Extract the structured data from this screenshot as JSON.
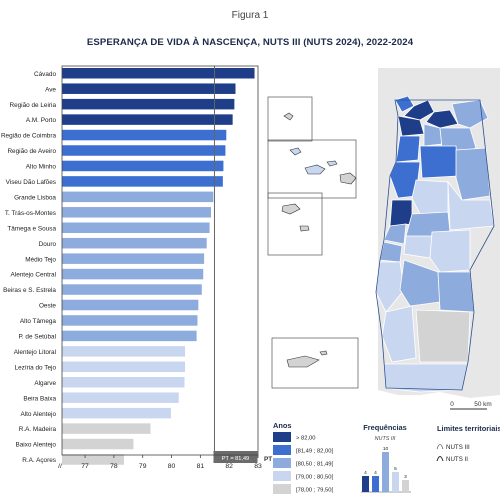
{
  "figure_label": "Figura 1",
  "title": "ESPERANÇA DE VIDA À NASCENÇA, NUTS III (NUTS 2024), 2022-2024",
  "chart_data": {
    "type": "bar",
    "orientation": "horizontal",
    "categories": [
      "Cávado",
      "Ave",
      "Região de Leiria",
      "A.M. Porto",
      "Região de Coimbra",
      "Região de Aveiro",
      "Alto Minho",
      "Viseu Dão Lafões",
      "Grande Lisboa",
      "T. Trás-os-Montes",
      "Tâmega e Sousa",
      "Douro",
      "Médio Tejo",
      "Alentejo Central",
      "Beiras e S. Estrela",
      "Oeste",
      "Alto Tâmega",
      "P. de Setúbal",
      "Alentejo Litoral",
      "Lezíria do Tejo",
      "Algarve",
      "Beira Baixa",
      "Alto Alentejo",
      "R.A. Madeira",
      "Baixo Alentejo",
      "R.A. Açores"
    ],
    "values": [
      82.88,
      82.22,
      82.18,
      82.12,
      81.9,
      81.87,
      81.8,
      81.78,
      81.45,
      81.37,
      81.32,
      81.22,
      81.13,
      81.1,
      81.05,
      80.93,
      80.9,
      80.87,
      80.47,
      80.47,
      80.45,
      80.25,
      79.98,
      79.27,
      78.68,
      78.35
    ],
    "classes": [
      0,
      0,
      0,
      0,
      1,
      1,
      1,
      1,
      2,
      2,
      2,
      2,
      2,
      2,
      2,
      2,
      2,
      2,
      3,
      3,
      3,
      3,
      3,
      4,
      4,
      4
    ],
    "xlim": [
      76.2,
      83
    ],
    "xticks": [
      "77",
      "78",
      "79",
      "80",
      "81",
      "82",
      "83"
    ],
    "axis_break_label": "//",
    "reference_line": {
      "value": 81.49,
      "label": "PT = 81,49",
      "axis_tag": "PT"
    },
    "legend": {
      "title": "Anos",
      "entries": [
        {
          "label": "> 82,00",
          "color": "#1f3e8a"
        },
        {
          "label": "[81,49 ; 82,00[",
          "color": "#3c6fd0"
        },
        {
          "label": "[80,50 ; 81,49[",
          "color": "#8eabde"
        },
        {
          "label": "[79,00 ; 80,50[",
          "color": "#c9d6f0"
        },
        {
          "label": "[78,00 ; 79,50[",
          "color": "#d3d3d3"
        }
      ]
    },
    "frequencies": {
      "title": "Frequências",
      "subtitle": "NUTS III",
      "values": [
        4,
        4,
        10,
        5,
        3
      ]
    },
    "limits": {
      "title": "Limites territoriais",
      "items": [
        "NUTS III",
        "NUTS II"
      ]
    },
    "map": {
      "scale_labels": [
        "0",
        "50 km"
      ]
    }
  }
}
